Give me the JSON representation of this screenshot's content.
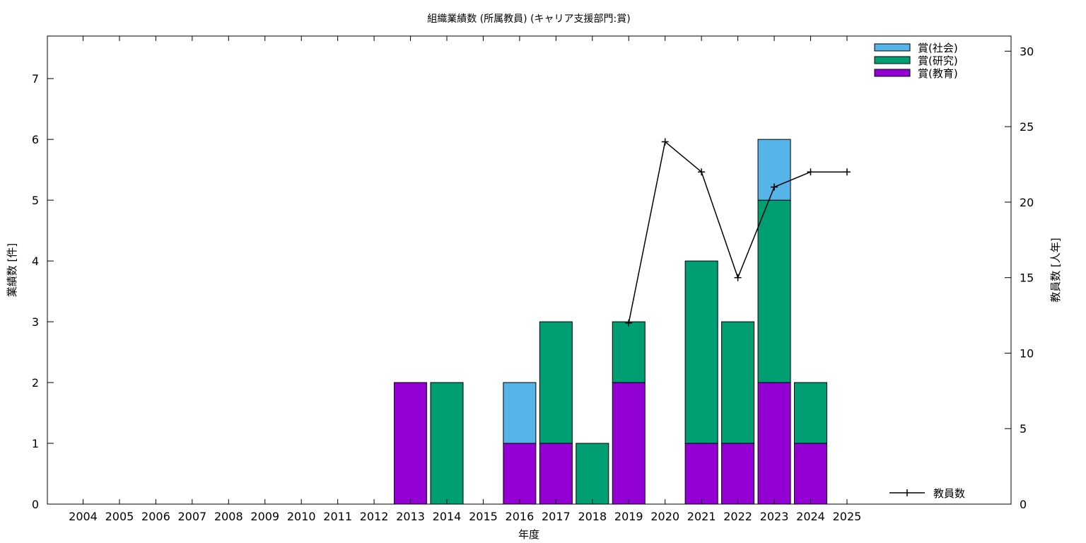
{
  "chart_data": {
    "type": "bar",
    "title": "組織業績数 (所属教員) (キャリア支援部門:賞)",
    "xlabel": "年度",
    "ylabel": "業績数 [件]",
    "y2label": "教員数 [人年]",
    "ylim": [
      0,
      7.7
    ],
    "y2lim": [
      0,
      31
    ],
    "yticks": [
      0,
      1,
      2,
      3,
      4,
      5,
      6,
      7
    ],
    "y2ticks": [
      0,
      5,
      10,
      15,
      20,
      25,
      30
    ],
    "categories": [
      "2004",
      "2005",
      "2006",
      "2007",
      "2008",
      "2009",
      "2010",
      "2011",
      "2012",
      "2013",
      "2014",
      "2015",
      "2016",
      "2017",
      "2018",
      "2019",
      "2020",
      "2021",
      "2022",
      "2023",
      "2024",
      "2025"
    ],
    "stacked": true,
    "series": [
      {
        "name": "賞(教育)",
        "color": "#9400d3",
        "values": [
          0,
          0,
          0,
          0,
          0,
          0,
          0,
          0,
          0,
          2,
          0,
          0,
          1,
          1,
          0,
          2,
          0,
          1,
          1,
          2,
          1,
          0
        ]
      },
      {
        "name": "賞(研究)",
        "color": "#009e73",
        "values": [
          0,
          0,
          0,
          0,
          0,
          0,
          0,
          0,
          0,
          0,
          2,
          0,
          0,
          2,
          1,
          1,
          0,
          3,
          2,
          3,
          1,
          0
        ]
      },
      {
        "name": "賞(社会)",
        "color": "#56b4e9",
        "values": [
          0,
          0,
          0,
          0,
          0,
          0,
          0,
          0,
          0,
          0,
          0,
          0,
          1,
          0,
          0,
          0,
          0,
          0,
          0,
          1,
          0,
          0
        ]
      }
    ],
    "line_series": {
      "name": "教員数",
      "color": "#000000",
      "axis": "right",
      "x": [
        "2019",
        "2020",
        "2021",
        "2022",
        "2023",
        "2024",
        "2025"
      ],
      "values": [
        12,
        24,
        22,
        15,
        21,
        22,
        22
      ]
    },
    "legend": "top-right",
    "line_legend": "bottom-right",
    "grid": false
  }
}
